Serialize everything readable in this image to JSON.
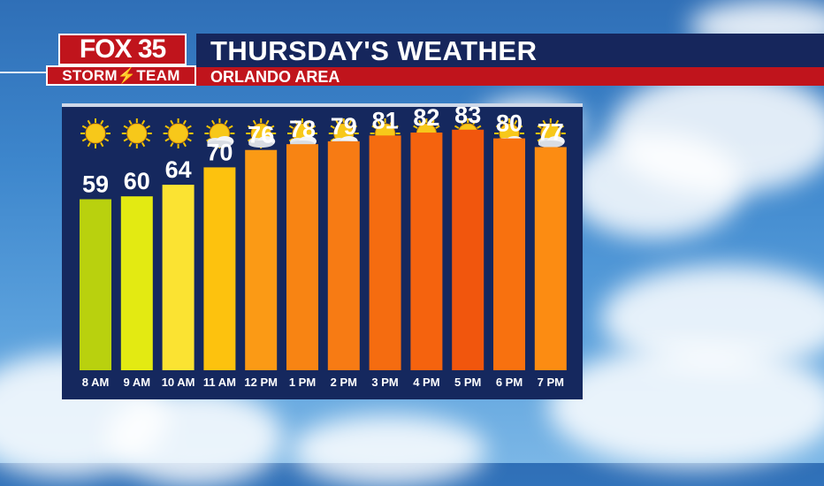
{
  "header": {
    "title": "THURSDAY'S WEATHER",
    "subtitle": "ORLANDO AREA"
  },
  "logo": {
    "brand": "FOX 35",
    "team": "STORM⚡TEAM"
  },
  "colors": {
    "header_navy": "#16265c",
    "header_red": "#c0141c",
    "panel_bg": "#15285e"
  },
  "chart_data": {
    "type": "bar",
    "title": "",
    "xlabel": "",
    "ylabel": "",
    "categories": [
      "8 AM",
      "9 AM",
      "10 AM",
      "11 AM",
      "12 PM",
      "1 PM",
      "2 PM",
      "3 PM",
      "4 PM",
      "5 PM",
      "6 PM",
      "7 PM"
    ],
    "series": [
      {
        "values": [
          59,
          60,
          64,
          70,
          76,
          78,
          79,
          81,
          82,
          83,
          80,
          77
        ],
        "colors": [
          "#b9d10e",
          "#e3ea12",
          "#fbe332",
          "#fdc20e",
          "#fb9a15",
          "#f88413",
          "#f77b14",
          "#f56c10",
          "#f5630e",
          "#f1560d",
          "#f8710f",
          "#fc8c12"
        ]
      }
    ],
    "icons": [
      "sun-icon",
      "sun-icon",
      "sun-icon",
      "partly-sunny-icon",
      "partly-sunny-icon",
      "partly-sunny-icon",
      "partly-sunny-icon",
      "partly-sunny-icon",
      "partly-sunny-icon",
      "sun-icon",
      "partly-sunny-icon",
      "partly-sunny-icon"
    ],
    "ylim": [
      0,
      90
    ],
    "grid": false,
    "legend": "none"
  }
}
